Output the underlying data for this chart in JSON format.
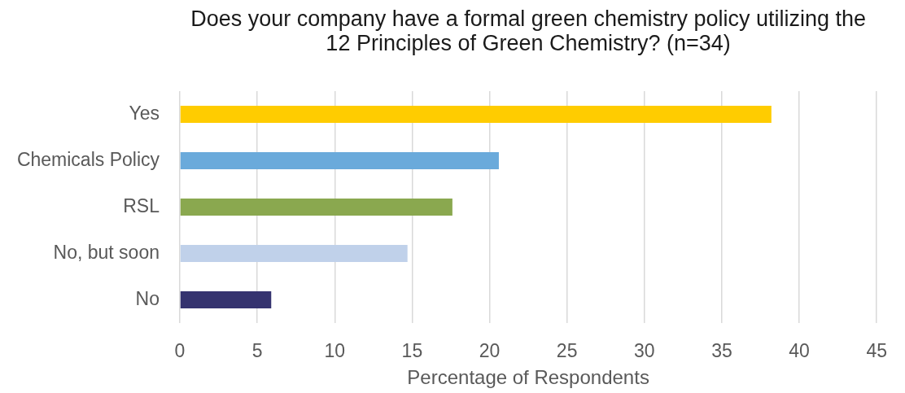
{
  "chart_data": {
    "type": "bar",
    "orientation": "horizontal",
    "title": "Does your company have a formal green chemistry policy utilizing the 12 Principles of Green Chemistry? (n=34)",
    "xlabel": "Percentage of Respondents",
    "categories": [
      "Yes",
      "Chemicals Policy",
      "RSL",
      "No, but soon",
      "No"
    ],
    "values": [
      38.2,
      20.6,
      17.6,
      14.7,
      5.9
    ],
    "colors": [
      "#ffcc00",
      "#6aaadb",
      "#8aa84f",
      "#c0d1ea",
      "#35336f"
    ],
    "xlim": [
      0,
      45
    ],
    "xticks": [
      0,
      5,
      10,
      15,
      20,
      25,
      30,
      35,
      40,
      45
    ],
    "grid": "x"
  }
}
